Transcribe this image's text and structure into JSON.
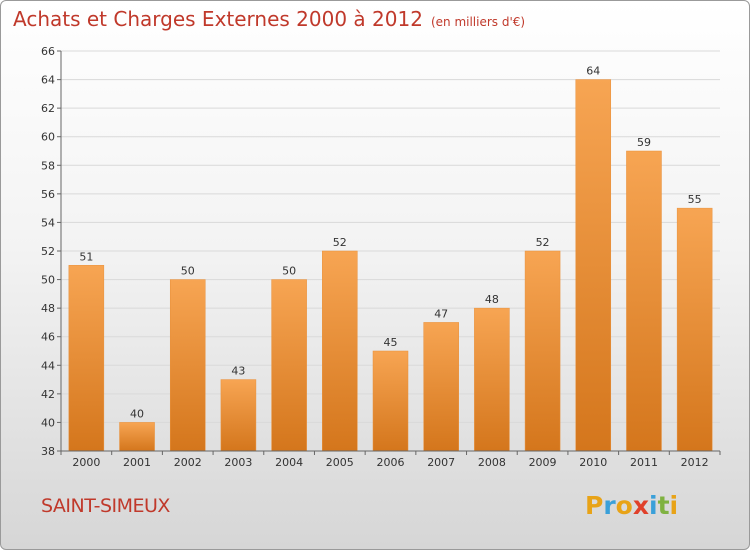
{
  "header": {
    "title": "Achats et Charges Externes 2000 à 2012",
    "unit": "(en milliers d'€)"
  },
  "footer": {
    "commune": "SAINT-SIMEUX",
    "logo_letters": [
      {
        "ch": "P",
        "color": "#e8a317"
      },
      {
        "ch": "r",
        "color": "#3aa0d9"
      },
      {
        "ch": "o",
        "color": "#e8a317"
      },
      {
        "ch": "x",
        "color": "#e0402a"
      },
      {
        "ch": "i",
        "color": "#3aa0d9"
      },
      {
        "ch": "t",
        "color": "#7fb241"
      },
      {
        "ch": "i",
        "color": "#e8a317"
      }
    ]
  },
  "chart_data": {
    "type": "bar",
    "title": "Achats et Charges Externes 2000 à 2012",
    "subtitle": "(en milliers d'€)",
    "categories": [
      "2000",
      "2001",
      "2002",
      "2003",
      "2004",
      "2005",
      "2006",
      "2007",
      "2008",
      "2009",
      "2010",
      "2011",
      "2012"
    ],
    "values": [
      51,
      40,
      50,
      43,
      50,
      52,
      45,
      47,
      48,
      52,
      64,
      59,
      55
    ],
    "ylim": [
      38,
      66
    ],
    "yticks": [
      38,
      40,
      42,
      44,
      46,
      48,
      50,
      52,
      54,
      56,
      58,
      60,
      62,
      64,
      66
    ],
    "grid": true,
    "colors": {
      "bar_light": "#f7a553",
      "bar_dark": "#d4761c",
      "grid": "#d9d9d9",
      "axis": "#666666",
      "text": "#333333"
    }
  }
}
